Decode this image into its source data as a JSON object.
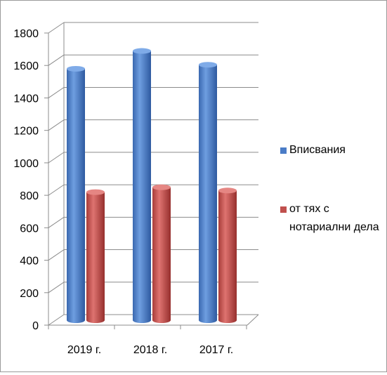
{
  "chart_data": {
    "type": "bar",
    "categories": [
      "2019 г.",
      "2018 г.",
      "2017 г."
    ],
    "series": [
      {
        "name": "Вписвания",
        "values": [
          1560,
          1670,
          1585
        ],
        "color": "#4a7cc7"
      },
      {
        "name": "от тях с нотариални дела",
        "values": [
          800,
          830,
          810
        ],
        "color": "#c0504d"
      }
    ],
    "title": "",
    "xlabel": "",
    "ylabel": "",
    "ylim": [
      0,
      1800
    ],
    "yticks": [
      "0",
      "200",
      "400",
      "600",
      "800",
      "1000",
      "1200",
      "1400",
      "1600",
      "1800"
    ],
    "grid": true,
    "legend": "right",
    "style": "3d-cylinder"
  }
}
